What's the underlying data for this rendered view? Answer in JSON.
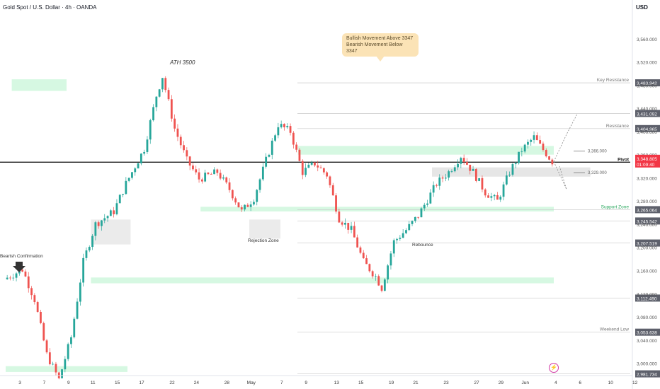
{
  "header": {
    "symbol": "Gold Spot / U.S. Dollar · 4h · OANDA",
    "currency": "USD"
  },
  "note": {
    "line1": "Bullish Movement Above 3347",
    "line2": "Bearish Movement Below 3347"
  },
  "icons": {
    "alert": "lightning-icon"
  },
  "colors": {
    "up": "#26a69a",
    "down": "#ef5350",
    "zone": "#c8f5d8",
    "gray_zone": "#dddddd",
    "pivot": "#1a1a1a",
    "price_tag": "#f23645"
  },
  "chart_data": {
    "type": "candlestick",
    "title": "Gold Spot / U.S. Dollar · 4h · OANDA",
    "ylim": [
      2980,
      3600
    ],
    "y_ticks": [
      3000,
      3040,
      3080,
      3120,
      3160,
      3200,
      3240,
      3280,
      3320,
      3360,
      3400,
      3440,
      3480,
      3520,
      3560
    ],
    "y_tick_labels": [
      "3,000.000",
      "3,040.000",
      "3,080.000",
      "3,120.000",
      "3,160.000",
      "3,200.000",
      "3,240.000",
      "3,280.000",
      "3,320.000",
      "3,360.000",
      "3,400.000",
      "3,440.000",
      "3,480.000",
      "3,520.000",
      "3,560.000"
    ],
    "x_ticks": [
      "3",
      "7",
      "9",
      "11",
      "15",
      "17",
      "22",
      "24",
      "28",
      "May",
      "7",
      "9",
      "13",
      "15",
      "19",
      "21",
      "23",
      "27",
      "29",
      "Jun",
      "4",
      "6",
      "10",
      "12"
    ],
    "x_tick_index": [
      0,
      4,
      8,
      12,
      16,
      20,
      25,
      29,
      34,
      38,
      43,
      47,
      52,
      56,
      61,
      65,
      70,
      75,
      79,
      83,
      88,
      92,
      97,
      101
    ],
    "close_path": [
      [
        0,
        3145
      ],
      [
        3,
        3162
      ],
      [
        5,
        3110
      ],
      [
        7,
        3015
      ],
      [
        9,
        2972
      ],
      [
        11,
        3045
      ],
      [
        13,
        3175
      ],
      [
        15,
        3240
      ],
      [
        18,
        3262
      ],
      [
        20,
        3310
      ],
      [
        23,
        3370
      ],
      [
        25,
        3462
      ],
      [
        26,
        3495
      ],
      [
        28,
        3405
      ],
      [
        30,
        3350
      ],
      [
        32,
        3318
      ],
      [
        35,
        3330
      ],
      [
        37,
        3300
      ],
      [
        39,
        3262
      ],
      [
        41,
        3285
      ],
      [
        43,
        3350
      ],
      [
        45,
        3412
      ],
      [
        47,
        3400
      ],
      [
        49,
        3330
      ],
      [
        51,
        3345
      ],
      [
        53,
        3325
      ],
      [
        55,
        3250
      ],
      [
        57,
        3230
      ],
      [
        59,
        3175
      ],
      [
        61,
        3150
      ],
      [
        62,
        3130
      ],
      [
        64,
        3210
      ],
      [
        66,
        3230
      ],
      [
        68,
        3255
      ],
      [
        71,
        3310
      ],
      [
        73,
        3330
      ],
      [
        75,
        3358
      ],
      [
        77,
        3330
      ],
      [
        79,
        3295
      ],
      [
        81,
        3280
      ],
      [
        83,
        3330
      ],
      [
        85,
        3368
      ],
      [
        87,
        3390
      ],
      [
        88,
        3375
      ],
      [
        89,
        3362
      ],
      [
        90,
        3348
      ]
    ],
    "levels": [
      {
        "name": "Key Resistance",
        "price": 3483.942,
        "label": "3,483.942"
      },
      {
        "name": "",
        "price": 3431.092,
        "label": "3,431.092"
      },
      {
        "name": "Resistance",
        "price": 3404.965,
        "label": "3,404.965"
      },
      {
        "name": "Pivot",
        "price": 3347.0,
        "label": "3,347.000"
      },
      {
        "name": "Support Zone",
        "price": 3265.064,
        "label": "3,265.064"
      },
      {
        "name": "",
        "price": 3245.542,
        "label": "3,245.542"
      },
      {
        "name": "",
        "price": 3207.519,
        "label": "3,207.519"
      },
      {
        "name": "",
        "price": 3112.49,
        "label": "3,112.490"
      },
      {
        "name": "Weekend Low",
        "price": 3053.638,
        "label": "3,053.638"
      },
      {
        "name": "",
        "price": 2981.734,
        "label": "2,981.734"
      }
    ],
    "current_price": {
      "price": 3348.805,
      "label": "3,348.805",
      "countdown": "01:09:40"
    },
    "target_labels": [
      {
        "price": 3366.0,
        "label": "3,366.000"
      },
      {
        "price": 3329.0,
        "label": "3,329.000"
      }
    ],
    "annotations": [
      "ATH 3500",
      "Bearish Confirmation",
      "Rejection Zone",
      "Rebounce",
      "Pivot",
      "Key Resistance",
      "Resistance",
      "Support Zone",
      "Weekend Low"
    ]
  }
}
